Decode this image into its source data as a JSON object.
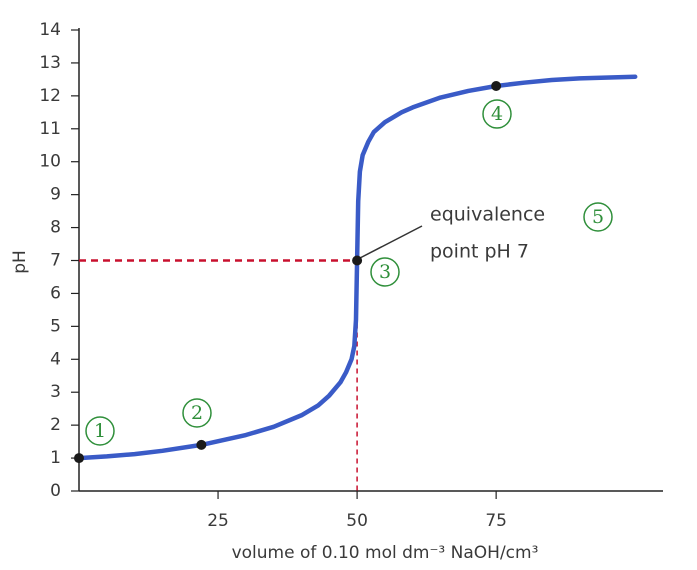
{
  "chart_data": {
    "type": "line",
    "x_label": "volume of 0.10 mol dm⁻³ NaOH/cm³",
    "y_label": "pH",
    "x": [
      0,
      5,
      10,
      15,
      22,
      30,
      35,
      40,
      43,
      45,
      47,
      48,
      49,
      49.5,
      49.8,
      50,
      50.2,
      50.5,
      51,
      52,
      53,
      55,
      58,
      60,
      65,
      70,
      75,
      80,
      85,
      90,
      100
    ],
    "values": [
      1.0,
      1.05,
      1.12,
      1.22,
      1.4,
      1.7,
      1.95,
      2.3,
      2.6,
      2.9,
      3.3,
      3.6,
      4.0,
      4.4,
      5.2,
      7.0,
      8.8,
      9.7,
      10.2,
      10.6,
      10.9,
      11.2,
      11.5,
      11.65,
      11.95,
      12.15,
      12.3,
      12.4,
      12.48,
      12.53,
      12.58
    ],
    "color": "#3a5bc7",
    "xlim": [
      0,
      105
    ],
    "ylim": [
      0,
      14
    ],
    "xticks": [
      25,
      50,
      75
    ],
    "yticks": [
      0,
      1,
      2,
      3,
      4,
      5,
      6,
      7,
      8,
      9,
      10,
      11,
      12,
      13,
      14
    ],
    "points": {
      "x": [
        0,
        22,
        50,
        75
      ],
      "y": [
        1.0,
        1.4,
        7.0,
        12.3
      ]
    },
    "guide_color": "#c8102e",
    "annotation": [
      "equivalence",
      "point pH 7"
    ],
    "labels": [
      "1",
      "2",
      "3",
      "4",
      "5"
    ]
  }
}
